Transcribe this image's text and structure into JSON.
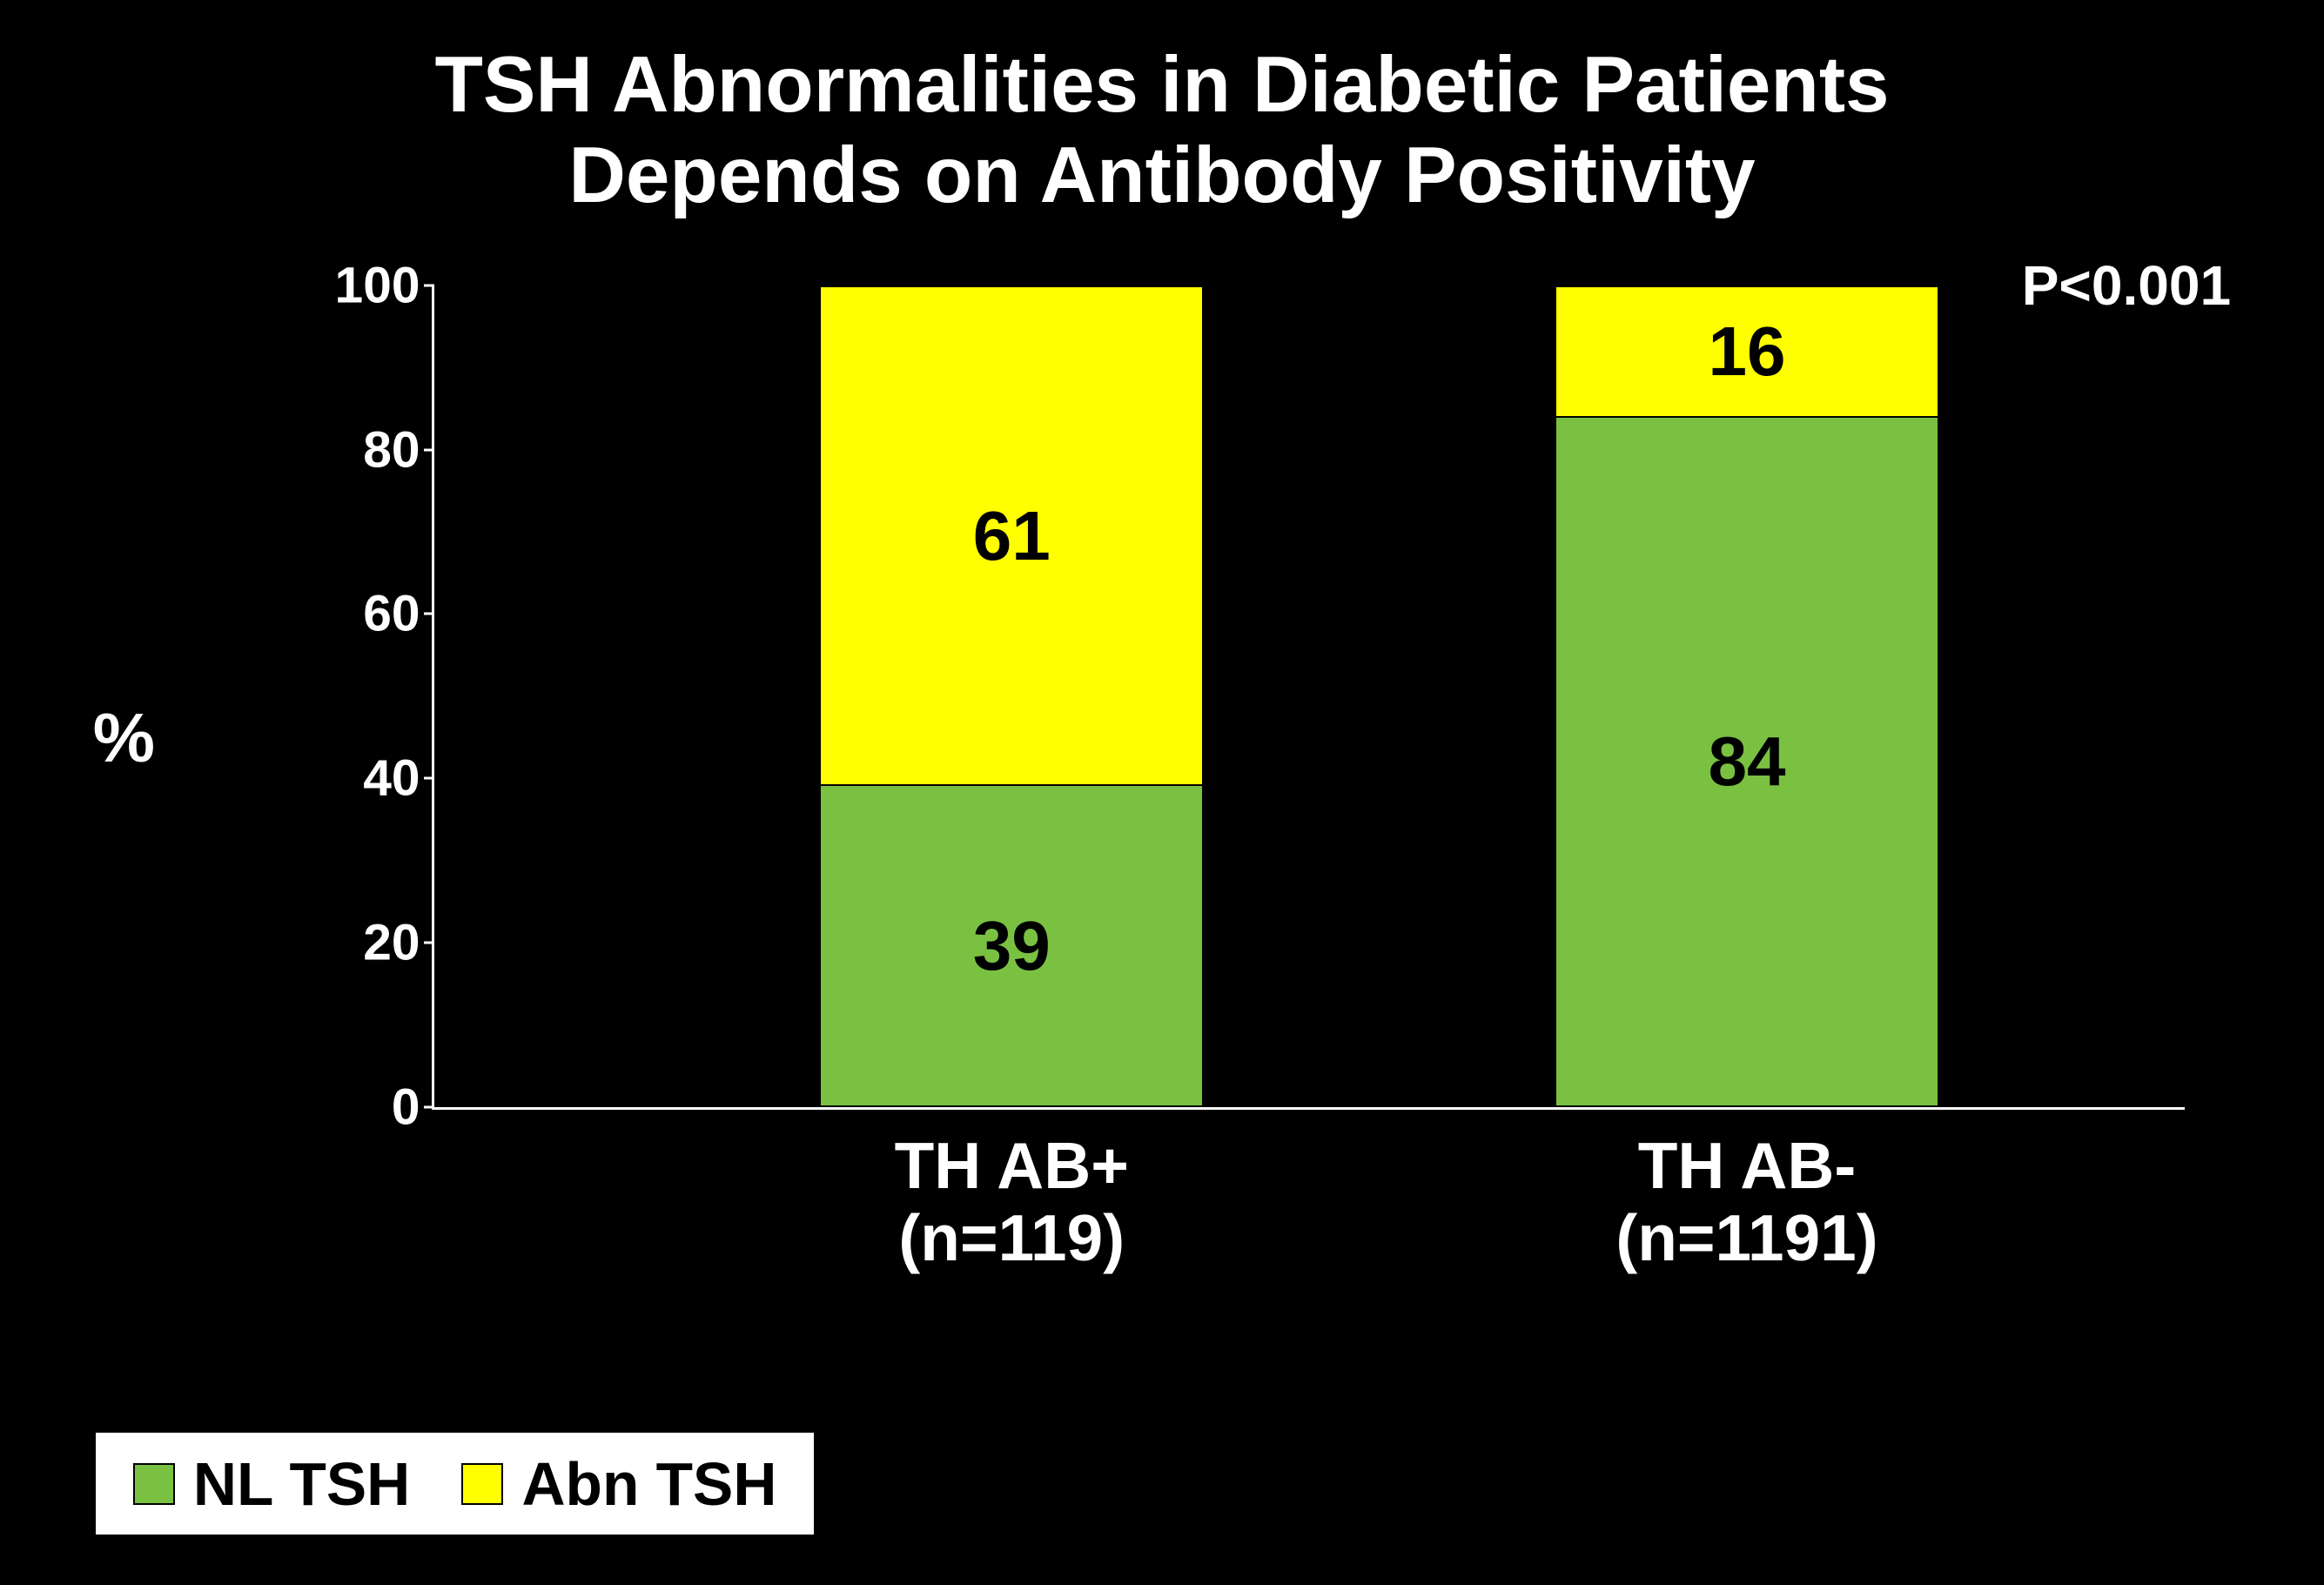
{
  "chart": {
    "type": "stacked-bar",
    "title_line1": "TSH Abnormalities in Diabetic Patients",
    "title_line2": "Depends on Antibody Positivity",
    "pvalue": "P<0.001",
    "ylabel": "%",
    "ylim": [
      0,
      100
    ],
    "ytick_step": 20,
    "yticks": [
      0,
      20,
      40,
      60,
      80,
      100
    ],
    "background_color": "#000000",
    "text_color": "#ffffff",
    "axis_color": "#ffffff",
    "legend_bg": "#ffffff",
    "legend_border": "#000000",
    "label_fontsize": 36,
    "title_fontsize": 48,
    "colors": {
      "nl_tsh": "#7ac142",
      "abn_tsh": "#ffff00"
    },
    "categories": [
      {
        "label_line1": "TH AB+",
        "label_line2": "(n=119)",
        "nl_tsh": 39,
        "abn_tsh": 61
      },
      {
        "label_line1": "TH AB-",
        "label_line2": "(n=1191)",
        "nl_tsh": 84,
        "abn_tsh": 16
      }
    ],
    "legend": [
      {
        "key": "nl_tsh",
        "label": "NL TSH"
      },
      {
        "key": "abn_tsh",
        "label": "Abn TSH"
      }
    ],
    "bar_positions_pct": [
      22,
      64
    ],
    "bar_width_pct": 22
  }
}
